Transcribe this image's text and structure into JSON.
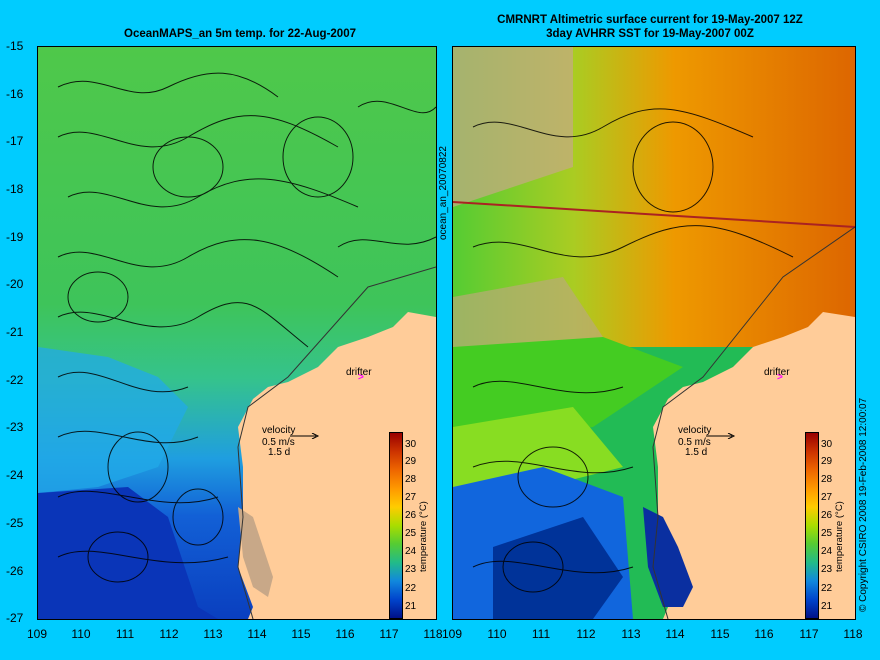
{
  "left_panel": {
    "title": "OceanMAPS_an 5m temp. for 22-Aug-2007",
    "side_label": "ocean_an_20070822",
    "drifter_label": "drifter",
    "velocity_label": "velocity",
    "velocity_scale": "0.5 m/s",
    "velocity_time": "1.5 d",
    "colorbar_label": "temperature (°C)"
  },
  "right_panel": {
    "title_line1": "CMRNRT Altimetric surface current for 19-May-2007 12Z",
    "title_line2": "3day AVHRR SST for 19-May-2007 00Z",
    "drifter_label": "drifter",
    "velocity_label": "velocity",
    "velocity_scale": "0.5 m/s",
    "velocity_time": "1.5 d",
    "colorbar_label": "temperature (°C)",
    "copyright": "© Copyright CSIRO 2008   19-Feb-2008 12:00:07"
  },
  "axes": {
    "lat_ticks": [
      "-15",
      "-16",
      "-17",
      "-18",
      "-19",
      "-20",
      "-21",
      "-22",
      "-23",
      "-24",
      "-25",
      "-26",
      "-27"
    ],
    "lon_ticks": [
      "109",
      "110",
      "111",
      "112",
      "113",
      "114",
      "115",
      "116",
      "117",
      "118"
    ]
  },
  "colorbar": {
    "ticks": [
      "30",
      "29",
      "28",
      "27",
      "26",
      "25",
      "24",
      "23",
      "22",
      "21"
    ],
    "colors": [
      "#990000",
      "#cc3300",
      "#ee6600",
      "#ff9900",
      "#ffcc00",
      "#aadd00",
      "#55cc33",
      "#22bb88",
      "#1188dd",
      "#0044cc",
      "#001188"
    ]
  },
  "colors": {
    "background": "#00ccff",
    "land": "#ffcc99",
    "drifter": "#ff00ff"
  }
}
